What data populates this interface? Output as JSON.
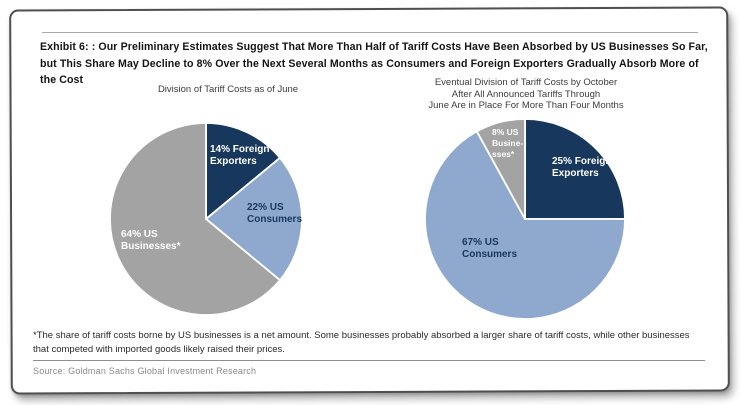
{
  "exhibit": {
    "title": "Exhibit 6: : Our Preliminary Estimates Suggest That More Than Half of Tariff Costs Have Been Absorbed by US Businesses So Far, but This Share May Decline to 8% Over the Next Several Months as Consumers and Foreign Exporters Gradually Absorb More of the Cost",
    "footnote": "*The share of tariff costs borne by US businesses is a net amount. Some businesses probably absorbed a larger share of tariff costs, while other businesses that competed with imported goods likely raised their prices.",
    "source": "Source: Goldman Sachs Global Investment Research"
  },
  "colors": {
    "navy": "#17375D",
    "light_blue": "#8FA9CE",
    "gray": "#A3A3A3",
    "slice_separator": "#FFFFFF"
  },
  "chart_data": [
    {
      "type": "pie",
      "title": "Division of Tariff Costs as of June",
      "start_angle_deg": 0,
      "direction": "clockwise",
      "slices": [
        {
          "label": "14% Foreign Exporters",
          "display": "14% Foreign\nExporters",
          "value": 14,
          "color": "#17375D",
          "label_color": "#FFFFFF"
        },
        {
          "label": "22% US Consumers",
          "display": "22% US\nConsumers",
          "value": 22,
          "color": "#8FA9CE",
          "label_color": "#17375D"
        },
        {
          "label": "64% US Businesses*",
          "display": "64% US\nBusinesses*",
          "value": 64,
          "color": "#A3A3A3",
          "label_color": "#FFFFFF"
        }
      ]
    },
    {
      "type": "pie",
      "title": "Eventual Division of Tariff Costs by October\nAfter All Announced Tariffs Through\nJune Are in Place For More Than Four Months",
      "start_angle_deg": 0,
      "direction": "clockwise",
      "slices": [
        {
          "label": "25% Foreign Exporters",
          "display": "25% Foreign\nExporters",
          "value": 25,
          "color": "#17375D",
          "label_color": "#FFFFFF"
        },
        {
          "label": "67% US Consumers",
          "display": "67% US\nConsumers",
          "value": 67,
          "color": "#8FA9CE",
          "label_color": "#17375D"
        },
        {
          "label": "8% US Businesses*",
          "display": "8% US\nBusine-\nsses*",
          "value": 8,
          "color": "#A3A3A3",
          "label_color": "#FFFFFF"
        }
      ]
    }
  ]
}
